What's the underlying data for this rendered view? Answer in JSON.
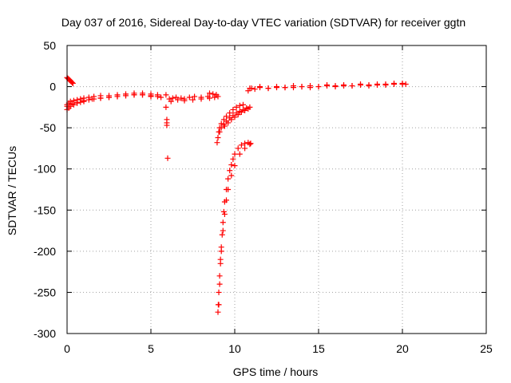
{
  "chart_data": {
    "type": "scatter",
    "title": "Day 037 of 2016, Sidereal Day-to-day VTEC variation (SDTVAR) for receiver ggtn",
    "xlabel": "GPS time / hours",
    "ylabel": "SDTVAR / TECUs",
    "xlim": [
      0,
      25
    ],
    "ylim": [
      -300,
      50
    ],
    "xticks": [
      0,
      5,
      10,
      15,
      20,
      25
    ],
    "yticks": [
      -300,
      -250,
      -200,
      -150,
      -100,
      -50,
      0,
      50
    ],
    "grid": true,
    "legend": "none",
    "marker": "plus",
    "color": "#ff0000",
    "series": [
      {
        "x": [
          0.0,
          0.05,
          0.1,
          0.15,
          0.2,
          0.25,
          0.3,
          0.35,
          0.0,
          0.1,
          0.2,
          0.4,
          0.6,
          0.8,
          1.0,
          1.3,
          1.6,
          2.0,
          2.5,
          3.0,
          3.5,
          4.0,
          4.5,
          5.0,
          5.4,
          5.6,
          0.0,
          0.1,
          0.2,
          0.4,
          0.6,
          0.8,
          1.0,
          1.3,
          1.6,
          2.0,
          2.5,
          3.0,
          3.5,
          4.0,
          4.5,
          5.0,
          5.4,
          0.0,
          0.3,
          0.6,
          1.0,
          1.5,
          2.0,
          2.5,
          3.0,
          3.5,
          4.0,
          4.5,
          5.0,
          5.9,
          5.9,
          5.95,
          5.95,
          5.95,
          6.0,
          6.1,
          6.3,
          6.5,
          6.8,
          7.0,
          7.3,
          7.6,
          8.0,
          8.4,
          8.8,
          9.0,
          6.2,
          6.6,
          7.0,
          7.5,
          8.0,
          8.5,
          8.9,
          8.5,
          8.7,
          8.9,
          8.95,
          9.0,
          9.05,
          9.1,
          9.2,
          9.35,
          9.5,
          9.7,
          9.9,
          10.1,
          10.3,
          10.5,
          9.1,
          9.2,
          9.35,
          9.5,
          9.7,
          9.9,
          10.1,
          10.3,
          10.5,
          10.7,
          9.4,
          9.6,
          9.8,
          10.0,
          10.2,
          10.4,
          10.6,
          10.8,
          10.9,
          9.0,
          9.02,
          9.05,
          9.1,
          9.15,
          9.2,
          9.25,
          9.3,
          9.35,
          9.4,
          9.5,
          9.6,
          9.7,
          9.8,
          9.9,
          10.0,
          10.2,
          10.4,
          10.6,
          10.8,
          10.95,
          9.05,
          9.1,
          9.15,
          9.2,
          9.3,
          9.4,
          9.5,
          9.6,
          9.8,
          10.0,
          10.3,
          10.6,
          10.9,
          10.8,
          10.9,
          11.0,
          11.5,
          12.0,
          12.5,
          13.0,
          13.5,
          14.0,
          14.5,
          15.0,
          15.5,
          16.0,
          16.5,
          17.0,
          17.5,
          18.0,
          18.5,
          19.0,
          19.5,
          20.0,
          11.2,
          12.0,
          13.0,
          14.0,
          15.0,
          16.0,
          17.0,
          18.0,
          19.0,
          20.0,
          20.2,
          11.5,
          12.5,
          13.5,
          14.5,
          15.5,
          16.5,
          17.5,
          18.5,
          19.5
        ],
        "y": [
          11,
          10,
          9,
          8,
          7,
          6,
          5,
          4,
          -28,
          -26,
          -24,
          -22,
          -20,
          -19,
          -18,
          -16,
          -15,
          -14,
          -13,
          -12,
          -11,
          -10,
          -10,
          -11,
          -12,
          -13,
          -22,
          -20,
          -18,
          -17,
          -16,
          -15,
          -14,
          -13,
          -12,
          -11,
          -11,
          -10,
          -9,
          -8,
          -8,
          -9,
          -10,
          -24,
          -21,
          -19,
          -17,
          -15,
          -14,
          -13,
          -12,
          -11,
          -10,
          -10,
          -12,
          -10,
          -25,
          -40,
          -44,
          -47,
          -87,
          -15,
          -14,
          -13,
          -14,
          -15,
          -13,
          -12,
          -13,
          -12,
          -13,
          -12,
          -18,
          -16,
          -17,
          -16,
          -15,
          -14,
          -10,
          -8,
          -9,
          -10,
          -68,
          -62,
          -55,
          -50,
          -45,
          -40,
          -36,
          -32,
          -28,
          -25,
          -23,
          -22,
          -55,
          -50,
          -46,
          -42,
          -38,
          -35,
          -32,
          -30,
          -28,
          -26,
          -48,
          -44,
          -40,
          -37,
          -34,
          -31,
          -29,
          -27,
          -25,
          -274,
          -265,
          -250,
          -230,
          -210,
          -195,
          -180,
          -165,
          -152,
          -140,
          -125,
          -112,
          -102,
          -95,
          -88,
          -82,
          -75,
          -71,
          -69,
          -68,
          -69,
          -265,
          -240,
          -215,
          -200,
          -175,
          -155,
          -138,
          -125,
          -108,
          -96,
          -82,
          -75,
          -70,
          -5,
          -2,
          -2,
          -1,
          -2,
          -1,
          -1,
          -1,
          0,
          -1,
          0,
          1,
          0,
          1,
          1,
          2,
          1,
          2,
          2,
          3,
          3,
          -3,
          -2,
          -1,
          0,
          0,
          1,
          1,
          2,
          3,
          4,
          3,
          0,
          0,
          1,
          1,
          2,
          2,
          3,
          3,
          4
        ]
      }
    ]
  }
}
